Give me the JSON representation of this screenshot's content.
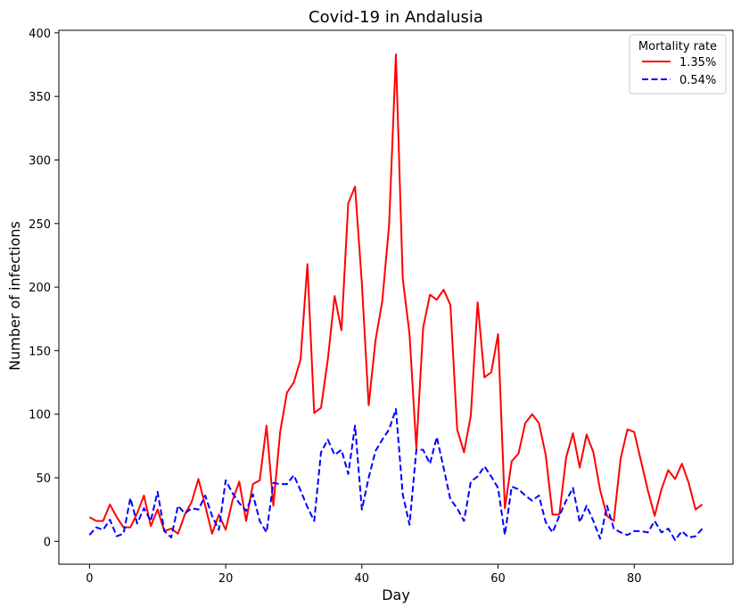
{
  "chart_data": {
    "type": "line",
    "title": "Covid-19 in Andalusia",
    "xlabel": "Day",
    "ylabel": "Number of infections",
    "xlim": [
      -4.5,
      94.5
    ],
    "ylim": [
      -18,
      402
    ],
    "xticks": [
      0,
      20,
      40,
      60,
      80
    ],
    "yticks": [
      0,
      50,
      100,
      150,
      200,
      250,
      300,
      350,
      400
    ],
    "grid": false,
    "legend": {
      "title": "Mortality rate",
      "placement": "top-right"
    },
    "series": [
      {
        "name": "1.35%",
        "color": "#ff0000",
        "linestyle": "solid",
        "x": [
          0,
          1,
          2,
          3,
          4,
          5,
          6,
          7,
          8,
          9,
          10,
          11,
          12,
          13,
          14,
          15,
          16,
          17,
          18,
          19,
          20,
          21,
          22,
          23,
          24,
          25,
          26,
          27,
          28,
          29,
          30,
          31,
          32,
          33,
          34,
          35,
          36,
          37,
          38,
          39,
          40,
          41,
          42,
          43,
          44,
          45,
          46,
          47,
          48,
          49,
          50,
          51,
          52,
          53,
          54,
          55,
          56,
          57,
          58,
          59,
          60,
          61,
          62,
          63,
          64,
          65,
          66,
          67,
          68,
          69,
          70,
          71,
          72,
          73,
          74,
          75,
          76,
          77,
          78,
          79,
          80,
          81,
          82,
          83,
          84,
          85,
          86,
          87,
          88,
          89,
          90
        ],
        "values": [
          19,
          16,
          16,
          29,
          19,
          11,
          11,
          22,
          36,
          12,
          25,
          8,
          10,
          6,
          21,
          31,
          49,
          28,
          6,
          21,
          9,
          32,
          47,
          16,
          45,
          48,
          91,
          28,
          86,
          117,
          125,
          143,
          218,
          101,
          105,
          143,
          193,
          166,
          266,
          279,
          203,
          107,
          158,
          189,
          249,
          383,
          207,
          163,
          73,
          168,
          194,
          190,
          198,
          186,
          88,
          70,
          99,
          188,
          129,
          133,
          163,
          26,
          63,
          69,
          93,
          100,
          93,
          68,
          21,
          21,
          66,
          85,
          58,
          84,
          70,
          40,
          20,
          16,
          65,
          88,
          86,
          63,
          40,
          20,
          41,
          56,
          49,
          61,
          46,
          25,
          29
        ]
      },
      {
        "name": "0.54%",
        "color": "#0000ff",
        "linestyle": "dashed",
        "x": [
          0,
          1,
          2,
          3,
          4,
          5,
          6,
          7,
          8,
          9,
          10,
          11,
          12,
          13,
          14,
          15,
          16,
          17,
          18,
          19,
          20,
          21,
          22,
          23,
          24,
          25,
          26,
          27,
          28,
          29,
          30,
          31,
          32,
          33,
          34,
          35,
          36,
          37,
          38,
          39,
          40,
          41,
          42,
          43,
          44,
          45,
          46,
          47,
          48,
          49,
          50,
          51,
          52,
          53,
          54,
          55,
          56,
          57,
          58,
          59,
          60,
          61,
          62,
          63,
          64,
          65,
          66,
          67,
          68,
          69,
          70,
          71,
          72,
          73,
          74,
          75,
          76,
          77,
          78,
          79,
          80,
          81,
          82,
          83,
          84,
          85,
          86,
          87,
          88,
          89,
          90
        ],
        "values": [
          5,
          11,
          9,
          17,
          4,
          6,
          34,
          14,
          26,
          16,
          39,
          8,
          3,
          28,
          22,
          26,
          25,
          36,
          20,
          9,
          48,
          38,
          30,
          24,
          37,
          16,
          7,
          46,
          45,
          45,
          52,
          40,
          27,
          16,
          70,
          80,
          68,
          72,
          53,
          91,
          25,
          50,
          71,
          80,
          88,
          104,
          37,
          13,
          72,
          72,
          61,
          82,
          58,
          33,
          26,
          16,
          47,
          51,
          59,
          51,
          42,
          5,
          43,
          41,
          36,
          32,
          36,
          15,
          7,
          20,
          32,
          42,
          15,
          28,
          16,
          2,
          28,
          10,
          7,
          5,
          8,
          8,
          7,
          16,
          7,
          10,
          1,
          8,
          3,
          4,
          10
        ]
      }
    ]
  }
}
